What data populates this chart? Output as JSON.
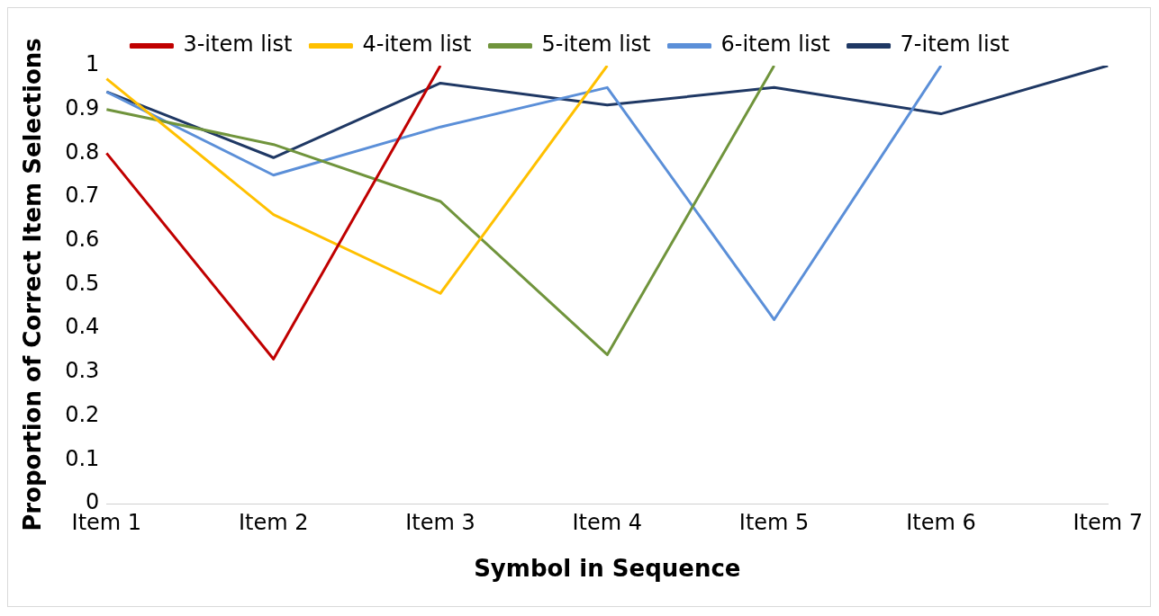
{
  "chart_data": {
    "type": "line",
    "xlabel": "Symbol in Sequence",
    "ylabel": "Proportion of Correct Item Selections",
    "categories": [
      "Item 1",
      "Item 2",
      "Item 3",
      "Item 4",
      "Item 5",
      "Item 6",
      "Item 7"
    ],
    "series": [
      {
        "name": "3-item list",
        "color": "#c00000",
        "values": [
          0.8,
          0.33,
          1,
          null,
          null,
          null,
          null
        ]
      },
      {
        "name": "4-item list",
        "color": "#ffc000",
        "values": [
          0.97,
          0.66,
          0.48,
          1,
          null,
          null,
          null
        ]
      },
      {
        "name": "5-item list",
        "color": "#70943c",
        "values": [
          0.9,
          0.82,
          0.69,
          0.34,
          1,
          null,
          null
        ]
      },
      {
        "name": "6-item list",
        "color": "#5b8fd8",
        "values": [
          0.94,
          0.75,
          0.86,
          0.95,
          0.42,
          1,
          null
        ]
      },
      {
        "name": "7-item list",
        "color": "#1f3864",
        "values": [
          0.94,
          0.79,
          0.96,
          0.91,
          0.95,
          0.89,
          1
        ]
      }
    ],
    "ylim": [
      0,
      1
    ],
    "yticks": [
      0,
      0.1,
      0.2,
      0.3,
      0.4,
      0.5,
      0.6,
      0.7,
      0.8,
      0.9,
      1
    ],
    "grid": false,
    "legend": "top",
    "marker": "none",
    "line_style": "solid"
  }
}
